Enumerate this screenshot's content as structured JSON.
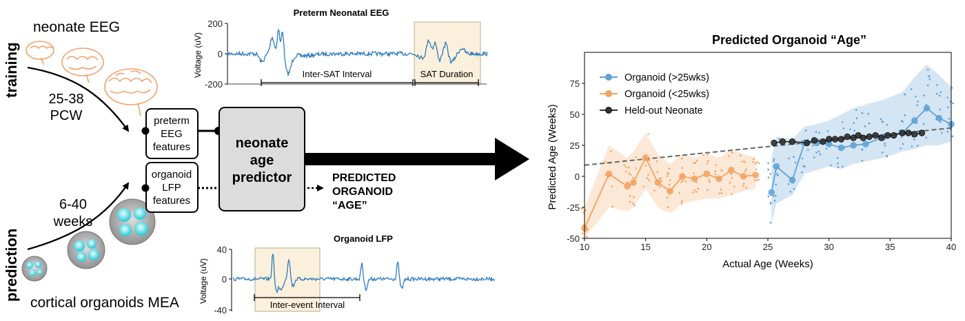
{
  "left": {
    "training_label": "training",
    "prediction_label": "prediction",
    "neonate_eeg_label": "neonate EEG",
    "training_range_line1": "25-38",
    "training_range_line2": "PCW",
    "prediction_range_line1": "6-40",
    "prediction_range_line2": "weeks",
    "organoids_label": "cortical organoids MEA",
    "eeg_features_box": [
      "preterm",
      "EEG",
      "features"
    ],
    "lfp_features_box": [
      "organoid",
      "LFP",
      "features"
    ],
    "predictor_box": [
      "neonate",
      "age",
      "predictor"
    ],
    "output_label": [
      "PREDICTED",
      "ORGANOID",
      "“AGE”"
    ]
  },
  "eeg_panel": {
    "title": "Preterm Neonatal EEG",
    "ylabel": "Voltage (uV)",
    "yticks": [
      "200",
      "0",
      "-200"
    ],
    "interval_label": "Inter-SAT Interval",
    "duration_label": "SAT Duration",
    "trace_color": "#2b7bbf",
    "highlight_color": "#fbf0dc"
  },
  "lfp_panel": {
    "title": "Organoid LFP",
    "ylabel": "Voltage (uV)",
    "yticks": [
      "40",
      "0",
      "-40"
    ],
    "interval_label": "Inter-event Interval",
    "trace_color": "#2b7bbf",
    "highlight_color": "#fbf0dc"
  },
  "chart_data": {
    "type": "line",
    "title": "Predicted Organoid “Age”",
    "xlabel": "Actual Age (Weeks)",
    "ylabel": "Predicted Age (Weeks)",
    "xlim": [
      10,
      40
    ],
    "ylim": [
      -50,
      100
    ],
    "xticks": [
      10,
      15,
      20,
      25,
      30,
      35,
      40
    ],
    "yticks": [
      -50,
      -25,
      0,
      25,
      50,
      75
    ],
    "legend_position": "top-left",
    "grid": false,
    "series": [
      {
        "name": "Organoid (>25wks)",
        "color": "#5fa2d6",
        "band_color": "#c9dff1",
        "x": [
          25.3,
          25.7,
          27.0,
          28.0,
          29.0,
          30.0,
          31.0,
          32.0,
          33.0,
          34.5,
          36.0,
          37.0,
          38.0,
          39.0,
          40.0
        ],
        "y": [
          -13,
          8,
          -3,
          27,
          27,
          26,
          23,
          25,
          26,
          32,
          35,
          45,
          55,
          47,
          42
        ],
        "band_low": [
          -38,
          -22,
          -15,
          2,
          5,
          8,
          6,
          10,
          12,
          15,
          20,
          22,
          25,
          25,
          28
        ],
        "band_high": [
          15,
          32,
          30,
          40,
          42,
          45,
          50,
          55,
          58,
          62,
          68,
          80,
          90,
          82,
          72
        ]
      },
      {
        "name": "Organoid (<25wks)",
        "color": "#f3a25f",
        "band_color": "#fbe2cc",
        "x": [
          10.0,
          12.0,
          13.5,
          14.0,
          15.0,
          16.0,
          17.0,
          18.0,
          19.0,
          20.0,
          21.0,
          22.0,
          23.0,
          24.0
        ],
        "y": [
          -42,
          2,
          -8,
          -5,
          15,
          -5,
          -12,
          0,
          -2,
          2,
          -2,
          5,
          0,
          1
        ],
        "band_low": [
          -50,
          -25,
          -28,
          -25,
          -10,
          -25,
          -30,
          -22,
          -20,
          -18,
          -18,
          -15,
          -12,
          -10
        ],
        "band_high": [
          -25,
          25,
          15,
          20,
          35,
          18,
          10,
          18,
          15,
          18,
          15,
          22,
          18,
          15
        ]
      },
      {
        "name": "Held-out Neonate",
        "color": "#333333",
        "x": [
          25.5,
          26.2,
          27.0,
          28.2,
          28.8,
          29.5,
          30.0,
          30.5,
          31.0,
          31.5,
          32.0,
          32.4,
          32.8,
          33.3,
          33.8,
          34.3,
          34.8,
          35.3,
          36.0,
          36.5,
          37.0,
          37.6
        ],
        "y": [
          27,
          28,
          28,
          27,
          29,
          28,
          30,
          30,
          30,
          32,
          31,
          33,
          31,
          32,
          33,
          31,
          33,
          33,
          35,
          35,
          34,
          35
        ]
      }
    ],
    "trend_line": {
      "x": [
        10,
        40
      ],
      "y": [
        9,
        39
      ]
    }
  }
}
